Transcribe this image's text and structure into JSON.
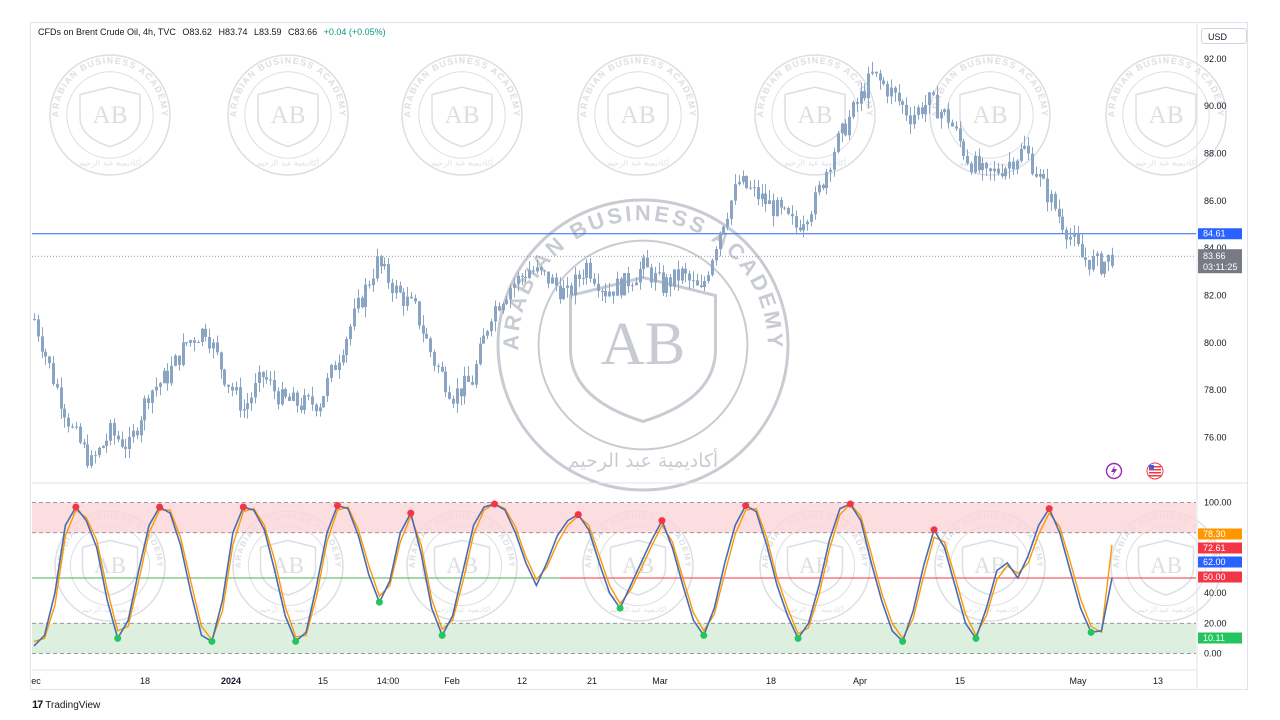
{
  "header": {
    "symbol": "CFDs on Brent Crude Oil, 4h, TVC",
    "open": "O83.62",
    "high": "H83.74",
    "low": "L83.59",
    "close": "C83.66",
    "change": "+0.04 (+0.05%)"
  },
  "currency": "USD",
  "footer": {
    "brand": "TradingView"
  },
  "watermark": {
    "text": "ARABIAN BUSINESS ACADEMY",
    "initials": "AB",
    "arabic": "أكاديمية عبد الرحيم"
  },
  "colors": {
    "candle": "#8aa4c4",
    "hline": "#2962ff",
    "k_line": "#4a6cb3",
    "d_line": "#ff9800",
    "overbought_fill": "#fbd6d9",
    "oversold_fill": "#d5ecd7",
    "mid_line": "#f23645",
    "green_line": "#4caf50",
    "dot_red": "#f23645",
    "dot_green": "#22c55e"
  },
  "chart_data": [
    {
      "type": "candlestick",
      "ylim": [
        74.2,
        92.8
      ],
      "yticks": [
        76,
        78,
        80,
        82,
        84,
        86,
        88,
        90,
        92
      ],
      "ytick_labels": [
        "76.00",
        "78.00",
        "80.00",
        "82.00",
        "84.00",
        "86.00",
        "88.00",
        "90.00",
        "92.00"
      ],
      "xticks": [
        "ec",
        "18",
        "2024",
        "15",
        "14:00",
        "Feb",
        "12",
        "21",
        "Mar",
        "18",
        "Apr",
        "15",
        "May",
        "13"
      ],
      "xtick_bold": [
        false,
        false,
        true,
        false,
        false,
        false,
        false,
        false,
        false,
        false,
        false,
        false,
        false,
        false
      ],
      "close_path": [
        [
          0,
          81.0
        ],
        [
          5,
          78.5
        ],
        [
          10,
          76.3
        ],
        [
          15,
          74.9
        ],
        [
          20,
          76.2
        ],
        [
          25,
          75.6
        ],
        [
          30,
          77.9
        ],
        [
          35,
          78.6
        ],
        [
          40,
          80.0
        ],
        [
          45,
          80.6
        ],
        [
          50,
          78.6
        ],
        [
          55,
          77.2
        ],
        [
          60,
          78.6
        ],
        [
          65,
          77.6
        ],
        [
          70,
          77.4
        ],
        [
          75,
          77.5
        ],
        [
          80,
          79.5
        ],
        [
          85,
          81.5
        ],
        [
          90,
          83.4
        ],
        [
          95,
          82.2
        ],
        [
          100,
          81.4
        ],
        [
          105,
          79.2
        ],
        [
          110,
          77.8
        ],
        [
          115,
          78.4
        ],
        [
          120,
          81.3
        ],
        [
          125,
          82.4
        ],
        [
          130,
          83.1
        ],
        [
          135,
          82.7
        ],
        [
          140,
          82.0
        ],
        [
          145,
          83.3
        ],
        [
          150,
          82.2
        ],
        [
          155,
          82.5
        ],
        [
          160,
          83.2
        ],
        [
          165,
          82.4
        ],
        [
          170,
          82.9
        ],
        [
          175,
          82.1
        ],
        [
          180,
          84.8
        ],
        [
          185,
          86.8
        ],
        [
          190,
          86.2
        ],
        [
          195,
          85.6
        ],
        [
          200,
          84.9
        ],
        [
          205,
          86.0
        ],
        [
          210,
          88.2
        ],
        [
          215,
          89.8
        ],
        [
          220,
          91.3
        ],
        [
          225,
          90.6
        ],
        [
          230,
          89.6
        ],
        [
          235,
          90.2
        ],
        [
          240,
          89.5
        ],
        [
          245,
          87.8
        ],
        [
          250,
          87.0
        ],
        [
          255,
          87.5
        ],
        [
          260,
          88.2
        ],
        [
          265,
          86.6
        ],
        [
          270,
          85.1
        ],
        [
          275,
          83.6
        ],
        [
          280,
          83.3
        ],
        [
          283,
          83.66
        ]
      ],
      "horizontal_line": {
        "value": 84.61,
        "label": "84.61"
      },
      "last_price": {
        "value": 83.66,
        "label": "83.66",
        "countdown": "03:11:25"
      }
    },
    {
      "type": "line",
      "title": "",
      "ylim": [
        -3,
        103
      ],
      "yticks": [
        0,
        20,
        40,
        60,
        100
      ],
      "ytick_labels": [
        "0.00",
        "20.00",
        "40.00",
        "60.00",
        "100.00"
      ],
      "levels": {
        "upper": 100,
        "overbought": 80,
        "mid": 50,
        "oversold": 20,
        "lower": 0
      },
      "series": [
        {
          "values": [
            5,
            12,
            40,
            85,
            97,
            88,
            70,
            35,
            10,
            22,
            55,
            85,
            97,
            93,
            72,
            40,
            12,
            8,
            35,
            80,
            97,
            95,
            82,
            55,
            25,
            8,
            14,
            45,
            80,
            98,
            96,
            78,
            52,
            34,
            48,
            80,
            93,
            66,
            30,
            12,
            25,
            55,
            85,
            97,
            99,
            95,
            80,
            60,
            45,
            60,
            78,
            88,
            92,
            82,
            60,
            40,
            30,
            45,
            60,
            75,
            88,
            70,
            45,
            22,
            12,
            30,
            60,
            85,
            98,
            94,
            72,
            45,
            25,
            10,
            20,
            45,
            75,
            96,
            99,
            88,
            60,
            35,
            15,
            8,
            28,
            58,
            82,
            70,
            45,
            20,
            10,
            30,
            55,
            60,
            50,
            65,
            85,
            96,
            80,
            55,
            30,
            14,
            15,
            50
          ]
        },
        {
          "values": [
            8,
            10,
            32,
            78,
            95,
            90,
            75,
            42,
            15,
            18,
            48,
            80,
            95,
            95,
            77,
            47,
            18,
            9,
            28,
            72,
            94,
            96,
            85,
            62,
            31,
            11,
            12,
            38,
            74,
            95,
            97,
            82,
            58,
            38,
            45,
            74,
            91,
            72,
            36,
            16,
            22,
            48,
            79,
            95,
            99,
            96,
            84,
            64,
            49,
            57,
            73,
            85,
            91,
            85,
            65,
            45,
            33,
            42,
            56,
            71,
            85,
            74,
            50,
            27,
            15,
            26,
            53,
            79,
            95,
            96,
            77,
            50,
            30,
            13,
            17,
            39,
            69,
            92,
            99,
            91,
            66,
            40,
            20,
            10,
            23,
            51,
            77,
            74,
            51,
            26,
            12,
            25,
            49,
            58,
            53,
            60,
            79,
            93,
            84,
            61,
            36,
            18,
            14,
            72
          ]
        }
      ],
      "value_labels": [
        {
          "label": "78.30",
          "color": "#ff9800"
        },
        {
          "label": "72.61",
          "color": "#f23645"
        },
        {
          "label": "62.00",
          "color": "#2962ff"
        },
        {
          "label": "50.00",
          "color": "#f23645"
        },
        {
          "label": "10.11",
          "color": "#22c55e"
        }
      ]
    }
  ]
}
